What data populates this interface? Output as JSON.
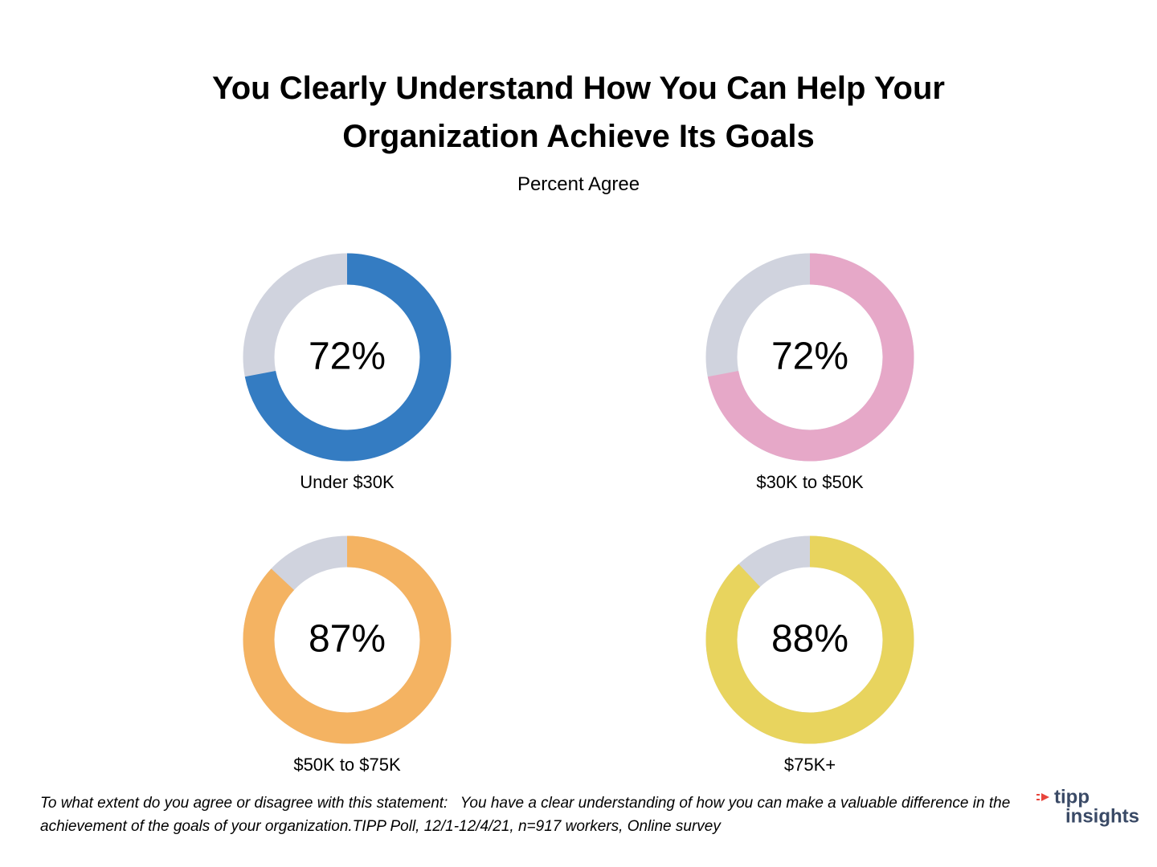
{
  "title": "You Clearly Understand How You Can Help Your Organization Achieve Its Goals",
  "subtitle": "Percent Agree",
  "chart_data": [
    {
      "type": "donut",
      "category": "Under $30K",
      "values": [
        72
      ],
      "value_labels": [
        "72%"
      ],
      "color": "#347cc2",
      "rest_color": "#d0d3de"
    },
    {
      "type": "donut",
      "category": "$30K to $50K",
      "values": [
        72
      ],
      "value_labels": [
        "72%"
      ],
      "color": "#e6a8c8",
      "rest_color": "#d0d3de"
    },
    {
      "type": "donut",
      "category": "$50K to $75K",
      "values": [
        87
      ],
      "value_labels": [
        "87%"
      ],
      "color": "#f4b362",
      "rest_color": "#d0d3de"
    },
    {
      "type": "donut",
      "category": "$75K+",
      "values": [
        88
      ],
      "value_labels": [
        "88%"
      ],
      "color": "#e8d45e",
      "rest_color": "#d0d3de"
    }
  ],
  "footnote": "To what extent do you agree or disagree with this statement:   You have a clear understanding of how you can make a valuable difference in the achievement of the goals of your organization.TIPP Poll, 12/1-12/4/21, n=917 workers, Online survey",
  "logo": {
    "line1": "tipp",
    "line2": "insights"
  }
}
